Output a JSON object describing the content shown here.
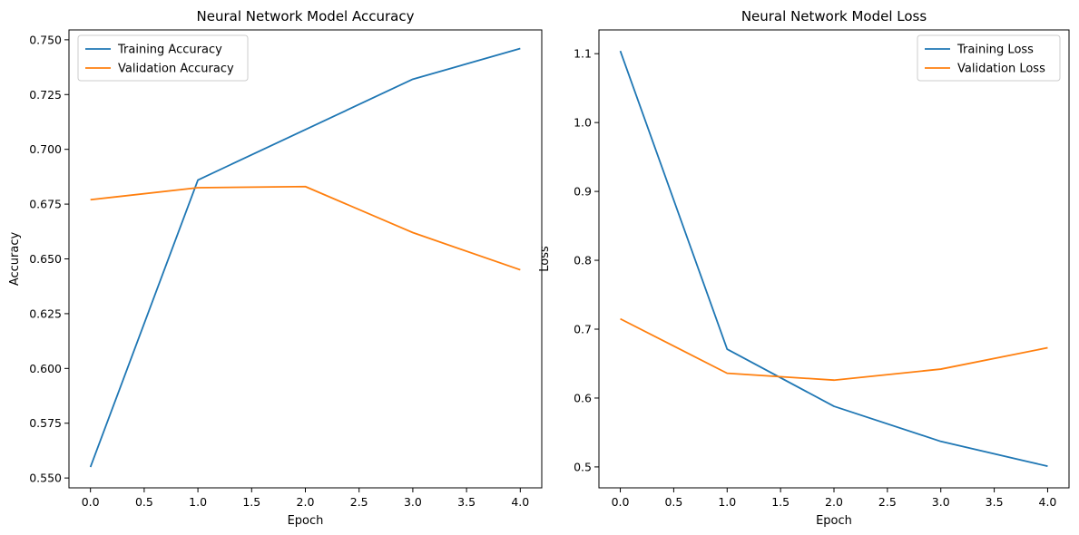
{
  "chart_data": [
    {
      "type": "line",
      "title": "Neural Network Model Accuracy",
      "xlabel": "Epoch",
      "ylabel": "Accuracy",
      "x": [
        0,
        1,
        2,
        3,
        4
      ],
      "xlim": [
        -0.2,
        4.2
      ],
      "ylim": [
        0.5455,
        0.7545
      ],
      "xticks": [
        0.0,
        0.5,
        1.0,
        1.5,
        2.0,
        2.5,
        3.0,
        3.5,
        4.0
      ],
      "xtick_labels": [
        "0.0",
        "0.5",
        "1.0",
        "1.5",
        "2.0",
        "2.5",
        "3.0",
        "3.5",
        "4.0"
      ],
      "yticks": [
        0.55,
        0.575,
        0.6,
        0.625,
        0.65,
        0.675,
        0.7,
        0.725,
        0.75
      ],
      "ytick_labels": [
        "0.550",
        "0.575",
        "0.600",
        "0.625",
        "0.650",
        "0.675",
        "0.700",
        "0.725",
        "0.750"
      ],
      "grid": false,
      "legend": "upper-left",
      "series": [
        {
          "name": "Training Accuracy",
          "color": "#1f77b4",
          "values": [
            0.555,
            0.686,
            0.709,
            0.732,
            0.746
          ]
        },
        {
          "name": "Validation Accuracy",
          "color": "#ff7f0e",
          "values": [
            0.677,
            0.6825,
            0.683,
            0.662,
            0.645
          ]
        }
      ]
    },
    {
      "type": "line",
      "title": "Neural Network Model Loss",
      "xlabel": "Epoch",
      "ylabel": "Loss",
      "x": [
        0,
        1,
        2,
        3,
        4
      ],
      "xlim": [
        -0.2,
        4.2
      ],
      "ylim": [
        0.4696,
        1.1345
      ],
      "xticks": [
        0.0,
        0.5,
        1.0,
        1.5,
        2.0,
        2.5,
        3.0,
        3.5,
        4.0
      ],
      "xtick_labels": [
        "0.0",
        "0.5",
        "1.0",
        "1.5",
        "2.0",
        "2.5",
        "3.0",
        "3.5",
        "4.0"
      ],
      "yticks": [
        0.5,
        0.6,
        0.7,
        0.8,
        0.9,
        1.0,
        1.1
      ],
      "ytick_labels": [
        "0.5",
        "0.6",
        "0.7",
        "0.8",
        "0.9",
        "1.0",
        "1.1"
      ],
      "grid": false,
      "legend": "upper-right",
      "series": [
        {
          "name": "Training Loss",
          "color": "#1f77b4",
          "values": [
            1.104,
            0.671,
            0.588,
            0.537,
            0.501
          ]
        },
        {
          "name": "Validation Loss",
          "color": "#ff7f0e",
          "values": [
            0.715,
            0.636,
            0.626,
            0.642,
            0.673
          ]
        }
      ]
    }
  ]
}
